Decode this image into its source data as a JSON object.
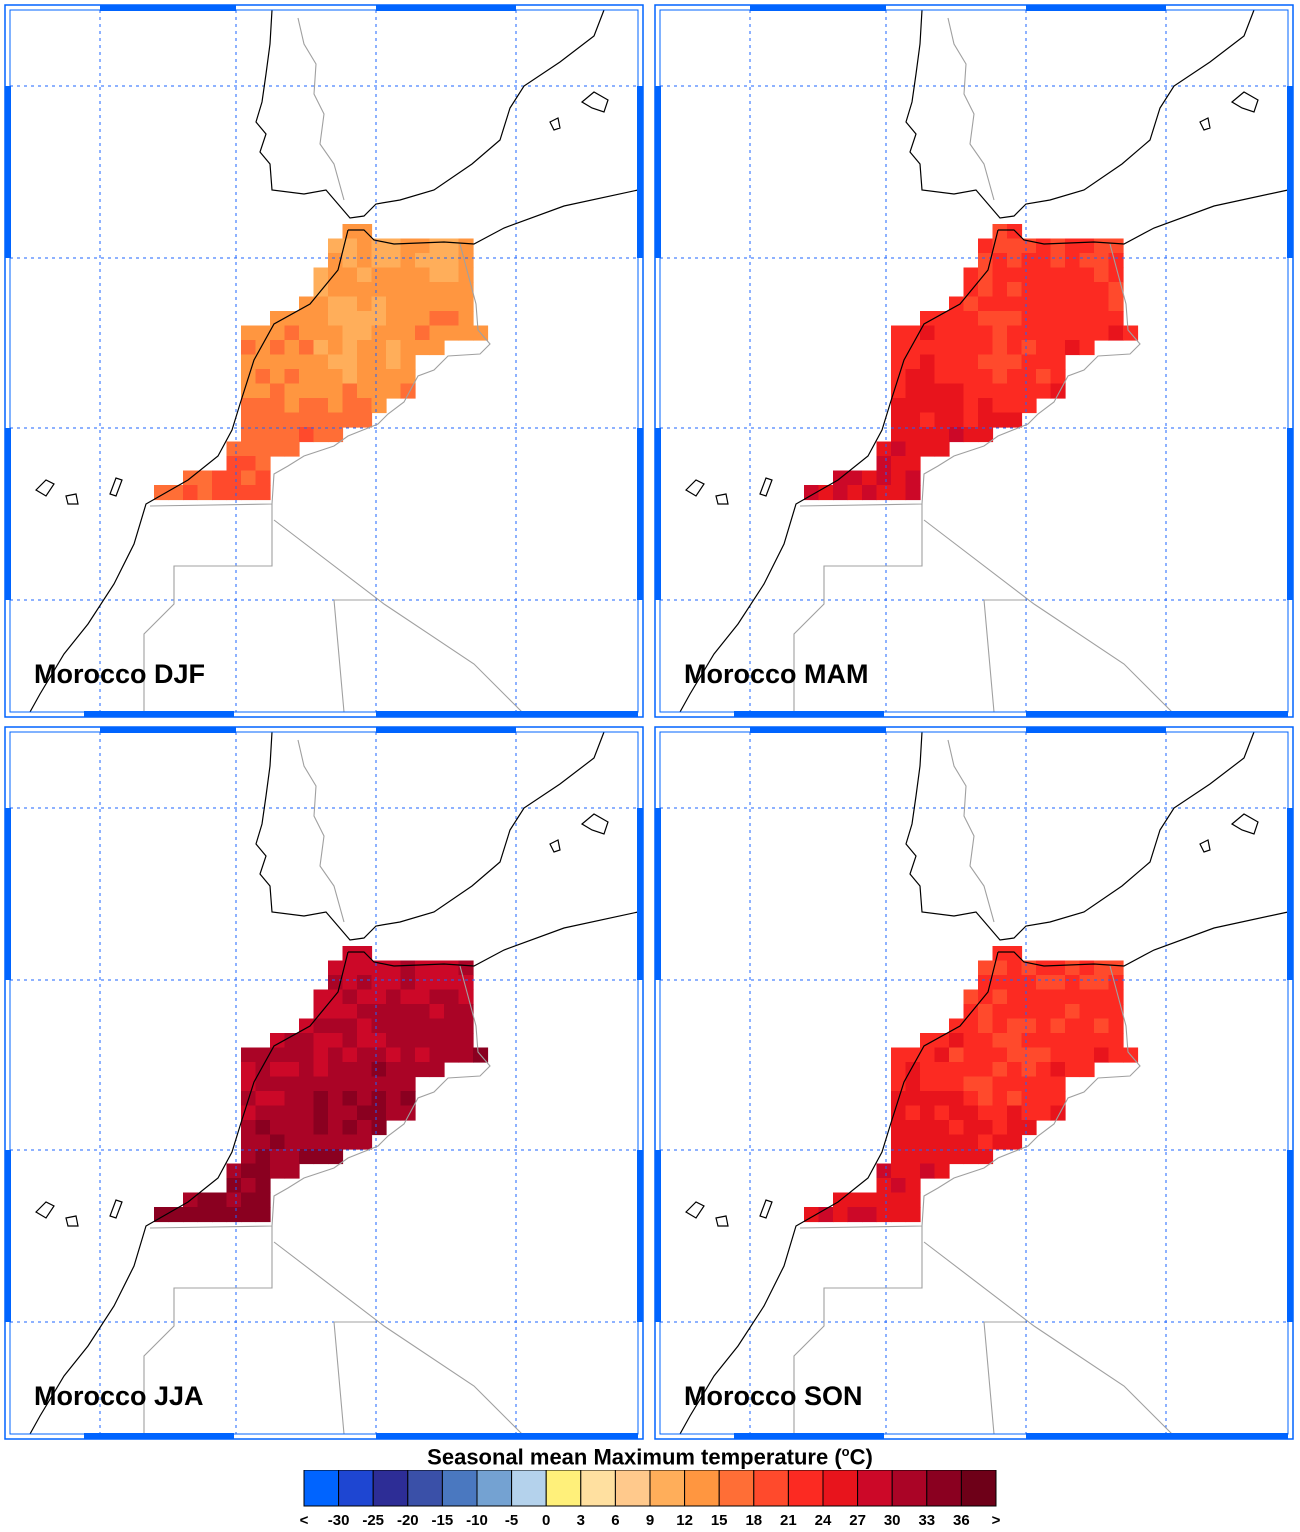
{
  "colorbar": {
    "title_pre": "Seasonal mean Maximum temperature (",
    "title_sup": "o",
    "title_post": "C)",
    "under_label": "<",
    "over_label": ">",
    "levels": [
      "-30",
      "-25",
      "-20",
      "-15",
      "-10",
      "-5",
      "0",
      "3",
      "6",
      "9",
      "12",
      "15",
      "18",
      "21",
      "24",
      "27",
      "30",
      "33",
      "36"
    ],
    "colors": [
      "#0064ff",
      "#1e46d2",
      "#2d2d96",
      "#3a50a8",
      "#4a78c0",
      "#74a2d2",
      "#b4d2ec",
      "#fff07a",
      "#ffe0a0",
      "#ffc98c",
      "#ffae5a",
      "#ff9640",
      "#ff6e36",
      "#ff4a2c",
      "#fc2a22",
      "#e8141c",
      "#cc0828",
      "#aa0426",
      "#8a0020",
      "#6e0018"
    ]
  },
  "panels": [
    {
      "label": "Morocco DJF",
      "season": "DJF",
      "palette": [
        "#ffc98c",
        "#ffae5a",
        "#ff9640",
        "#ff6e36",
        "#ff4a2c"
      ]
    },
    {
      "label": "Morocco MAM",
      "season": "MAM",
      "palette": [
        "#ff6e36",
        "#ff4a2c",
        "#fc2a22",
        "#e8141c",
        "#cc0828"
      ]
    },
    {
      "label": "Morocco JJA",
      "season": "JJA",
      "palette": [
        "#fc2a22",
        "#e8141c",
        "#cc0828",
        "#aa0426",
        "#8a0020"
      ]
    },
    {
      "label": "Morocco SON",
      "season": "SON",
      "palette": [
        "#ff6e36",
        "#ff4a2c",
        "#fc2a22",
        "#e8141c",
        "#cc0828"
      ]
    }
  ],
  "style": {
    "grid_color": "#1e64ff",
    "frame_color": "#0064ff",
    "coast_color": "#000000",
    "border_color": "#a0a0a0"
  }
}
